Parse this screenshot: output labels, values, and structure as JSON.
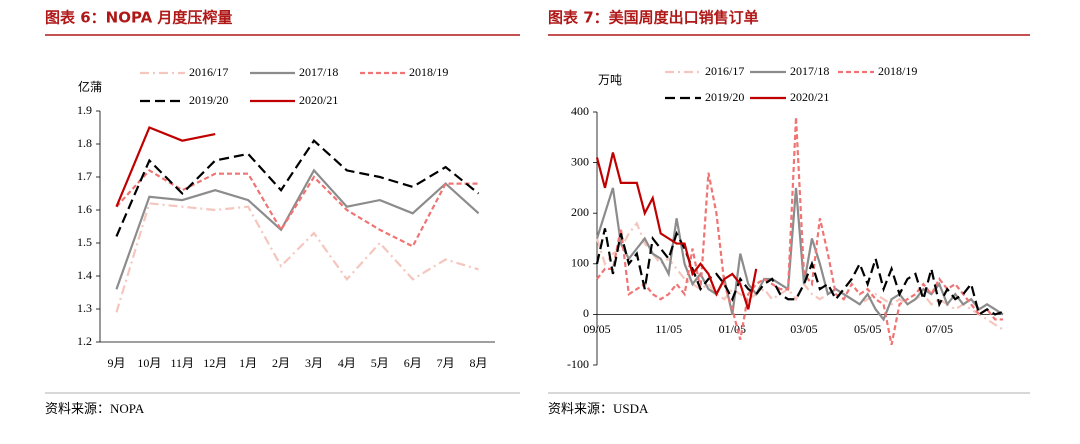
{
  "chart_data": [
    {
      "type": "line",
      "title": "图表 6：NOPA 月度压榨量",
      "y_label": "亿蒲",
      "source": "资料来源：NOPA",
      "categories": [
        "9月",
        "10月",
        "11月",
        "12月",
        "1月",
        "2月",
        "3月",
        "4月",
        "5月",
        "6月",
        "7月",
        "8月"
      ],
      "ylim": [
        1.2,
        1.9
      ],
      "yticks": [
        1.2,
        1.3,
        1.4,
        1.5,
        1.6,
        1.7,
        1.8,
        1.9
      ],
      "series": [
        {
          "name": "2016/17",
          "color": "#f5c6bd",
          "dash": "dash-dot",
          "values": [
            1.29,
            1.62,
            1.61,
            1.6,
            1.61,
            1.43,
            1.53,
            1.39,
            1.5,
            1.39,
            1.45,
            1.42
          ]
        },
        {
          "name": "2017/18",
          "color": "#8c8c8c",
          "dash": "solid",
          "values": [
            1.36,
            1.64,
            1.63,
            1.66,
            1.63,
            1.54,
            1.72,
            1.61,
            1.63,
            1.59,
            1.68,
            1.59
          ]
        },
        {
          "name": "2018/19",
          "color": "#f07474",
          "dash": "dash",
          "values": [
            1.61,
            1.72,
            1.66,
            1.71,
            1.71,
            1.54,
            1.7,
            1.6,
            1.54,
            1.49,
            1.68,
            1.68
          ]
        },
        {
          "name": "2019/20",
          "color": "#000000",
          "dash": "long-dash",
          "values": [
            1.52,
            1.75,
            1.65,
            1.75,
            1.77,
            1.66,
            1.81,
            1.72,
            1.7,
            1.67,
            1.73,
            1.65
          ]
        },
        {
          "name": "2020/21",
          "color": "#c00000",
          "dash": "solid",
          "values": [
            1.61,
            1.85,
            1.81,
            1.83,
            null,
            null,
            null,
            null,
            null,
            null,
            null,
            null
          ]
        }
      ]
    },
    {
      "type": "line",
      "title": "图表 7：美国周度出口销售订单",
      "y_label": "万吨",
      "source": "资料来源：USDA",
      "categories": [
        "09/05",
        null,
        null,
        null,
        null,
        null,
        null,
        null,
        null,
        "11/05",
        null,
        null,
        null,
        null,
        null,
        null,
        null,
        "01/05",
        null,
        null,
        null,
        null,
        null,
        null,
        null,
        null,
        "03/05",
        null,
        null,
        null,
        null,
        null,
        null,
        null,
        "05/05",
        null,
        null,
        null,
        null,
        null,
        null,
        null,
        null,
        "07/05",
        null,
        null,
        null,
        null,
        null,
        null,
        null,
        null
      ],
      "ylim": [
        -100,
        400
      ],
      "yticks": [
        -100,
        0,
        100,
        200,
        300,
        400
      ],
      "series": [
        {
          "name": "2016/17",
          "color": "#f5c6bd",
          "dash": "dash-dot",
          "values": [
            150,
            100,
            120,
            130,
            160,
            180,
            140,
            120,
            100,
            110,
            90,
            70,
            60,
            50,
            60,
            40,
            30,
            50,
            40,
            30,
            40,
            50,
            30,
            40,
            50,
            30,
            60,
            40,
            30,
            40,
            50,
            40,
            30,
            20,
            30,
            40,
            30,
            20,
            30,
            20,
            30,
            40,
            20,
            30,
            20,
            10,
            20,
            10,
            0,
            -10,
            -20,
            -30
          ]
        },
        {
          "name": "2017/18",
          "color": "#8c8c8c",
          "dash": "solid",
          "values": [
            150,
            200,
            250,
            140,
            110,
            130,
            150,
            120,
            110,
            80,
            190,
            100,
            60,
            80,
            50,
            40,
            70,
            0,
            120,
            60,
            40,
            70,
            70,
            60,
            50,
            250,
            60,
            150,
            100,
            40,
            50,
            40,
            30,
            20,
            40,
            10,
            -10,
            30,
            40,
            20,
            30,
            50,
            40,
            60,
            20,
            40,
            20,
            30,
            10,
            20,
            10,
            0
          ]
        },
        {
          "name": "2018/19",
          "color": "#f07474",
          "dash": "dash",
          "values": [
            70,
            90,
            90,
            170,
            40,
            50,
            60,
            40,
            30,
            40,
            60,
            40,
            130,
            50,
            280,
            200,
            60,
            10,
            -50,
            40,
            60,
            70,
            60,
            50,
            50,
            390,
            80,
            60,
            190,
            120,
            40,
            30,
            60,
            40,
            50,
            30,
            20,
            -60,
            20,
            30,
            40,
            60,
            40,
            70,
            50,
            60,
            40,
            20,
            0,
            10,
            -10,
            -10
          ]
        },
        {
          "name": "2019/20",
          "color": "#000000",
          "dash": "long-dash",
          "values": [
            100,
            170,
            80,
            160,
            100,
            120,
            50,
            150,
            130,
            110,
            160,
            130,
            90,
            50,
            70,
            80,
            60,
            30,
            70,
            50,
            40,
            60,
            70,
            40,
            30,
            30,
            60,
            100,
            50,
            60,
            30,
            50,
            70,
            100,
            60,
            110,
            50,
            90,
            40,
            70,
            80,
            30,
            90,
            20,
            50,
            30,
            40,
            60,
            0,
            10,
            0,
            5
          ]
        },
        {
          "name": "2020/21",
          "color": "#c00000",
          "dash": "solid",
          "values": [
            310,
            250,
            320,
            260,
            260,
            260,
            200,
            230,
            160,
            150,
            140,
            140,
            80,
            100,
            80,
            40,
            70,
            80,
            60,
            10,
            90,
            null,
            null,
            null,
            null,
            null,
            null,
            null,
            null,
            null,
            null,
            null,
            null,
            null,
            null,
            null,
            null,
            null,
            null,
            null,
            null,
            null,
            null,
            null,
            null,
            null,
            null,
            null,
            null,
            null,
            null,
            null
          ]
        }
      ]
    }
  ]
}
